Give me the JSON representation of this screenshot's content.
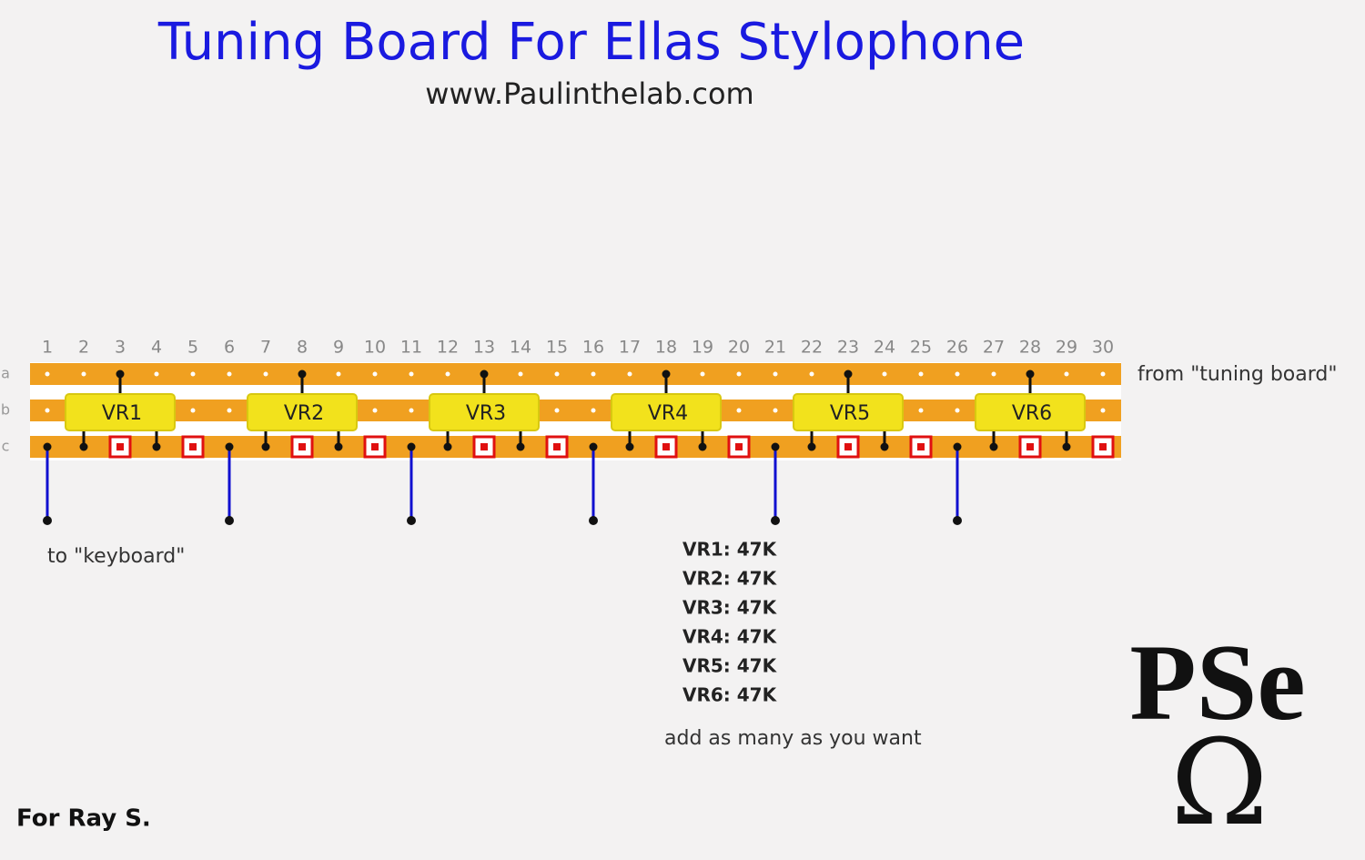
{
  "header": {
    "title": "Tuning Board For Ellas Stylophone",
    "subtitle": "www.Paulinthelab.com"
  },
  "board": {
    "columns": [
      1,
      2,
      3,
      4,
      5,
      6,
      7,
      8,
      9,
      10,
      11,
      12,
      13,
      14,
      15,
      16,
      17,
      18,
      19,
      20,
      21,
      22,
      23,
      24,
      25,
      26,
      27,
      28,
      29,
      30
    ],
    "rows": [
      "a",
      "b",
      "c"
    ],
    "components": [
      "VR1",
      "VR2",
      "VR3",
      "VR4",
      "VR5",
      "VR6"
    ]
  },
  "labels": {
    "input": "from \"tuning board\"",
    "output": "to \"keyboard\""
  },
  "parts_list": [
    "VR1: 47K",
    "VR2: 47K",
    "VR3: 47K",
    "VR4: 47K",
    "VR5: 47K",
    "VR6: 47K"
  ],
  "note": "add as many as you want",
  "logo": {
    "text": "PSe",
    "symbol": "Ω"
  },
  "footer": "For Ray S."
}
